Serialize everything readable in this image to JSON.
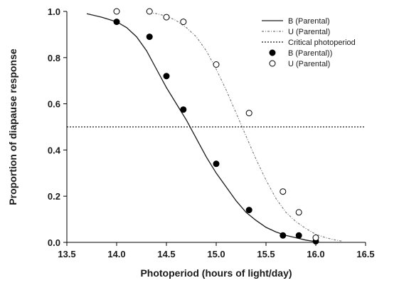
{
  "chart_data": {
    "type": "scatter",
    "xlabel": "Photoperiod (hours of light/day)",
    "ylabel": "Proportion of diapause response",
    "xlim": [
      13.5,
      16.5
    ],
    "ylim": [
      0.0,
      1.0
    ],
    "xticks": [
      "13.5",
      "14.0",
      "14.5",
      "15.0",
      "15.5",
      "16.0",
      "16.5"
    ],
    "yticks": [
      "0.0",
      "0.2",
      "0.4",
      "0.6",
      "0.8",
      "1.0"
    ],
    "grid": false,
    "legend_position": "top-right",
    "series": [
      {
        "name": "B (Parental)",
        "kind": "line",
        "style": "solid",
        "color": "#1a1a1a",
        "x": [
          13.7,
          13.85,
          14.0,
          14.1,
          14.2,
          14.3,
          14.4,
          14.5,
          14.6,
          14.7,
          14.8,
          14.9,
          15.0,
          15.1,
          15.2,
          15.3,
          15.4,
          15.5,
          15.6,
          15.7,
          15.8,
          15.9,
          15.97
        ],
        "y": [
          0.99,
          0.975,
          0.955,
          0.93,
          0.89,
          0.83,
          0.75,
          0.67,
          0.6,
          0.53,
          0.45,
          0.37,
          0.3,
          0.24,
          0.18,
          0.13,
          0.095,
          0.065,
          0.045,
          0.03,
          0.02,
          0.01,
          0.005
        ]
      },
      {
        "name": "U (Parental)",
        "kind": "line",
        "style": "dash-dot",
        "color": "#777777",
        "x": [
          14.33,
          14.4,
          14.5,
          14.6,
          14.7,
          14.8,
          14.9,
          15.0,
          15.1,
          15.2,
          15.3,
          15.4,
          15.5,
          15.6,
          15.7,
          15.8,
          15.9,
          16.0,
          16.1,
          16.2,
          16.27
        ],
        "y": [
          0.995,
          0.99,
          0.98,
          0.96,
          0.93,
          0.89,
          0.83,
          0.75,
          0.66,
          0.56,
          0.46,
          0.36,
          0.27,
          0.19,
          0.13,
          0.09,
          0.06,
          0.035,
          0.02,
          0.01,
          0.005
        ]
      },
      {
        "name": "Critical photoperiod",
        "kind": "hline",
        "style": "dotted",
        "color": "#1a1a1a",
        "y": 0.5
      },
      {
        "name": "B (Parental))",
        "kind": "points",
        "marker": "filled-circle",
        "color": "#000000",
        "x": [
          14.0,
          14.33,
          14.5,
          14.67,
          15.0,
          15.33,
          15.67,
          15.83,
          16.0
        ],
        "y": [
          0.955,
          0.89,
          0.72,
          0.575,
          0.34,
          0.14,
          0.03,
          0.03,
          0.005
        ]
      },
      {
        "name": "U (Parental)",
        "kind": "points",
        "marker": "open-circle",
        "color": "#000000",
        "x": [
          14.0,
          14.33,
          14.5,
          14.67,
          15.0,
          15.33,
          15.67,
          15.83,
          16.0
        ],
        "y": [
          1.0,
          1.0,
          0.975,
          0.955,
          0.77,
          0.56,
          0.22,
          0.13,
          0.02
        ]
      }
    ]
  }
}
